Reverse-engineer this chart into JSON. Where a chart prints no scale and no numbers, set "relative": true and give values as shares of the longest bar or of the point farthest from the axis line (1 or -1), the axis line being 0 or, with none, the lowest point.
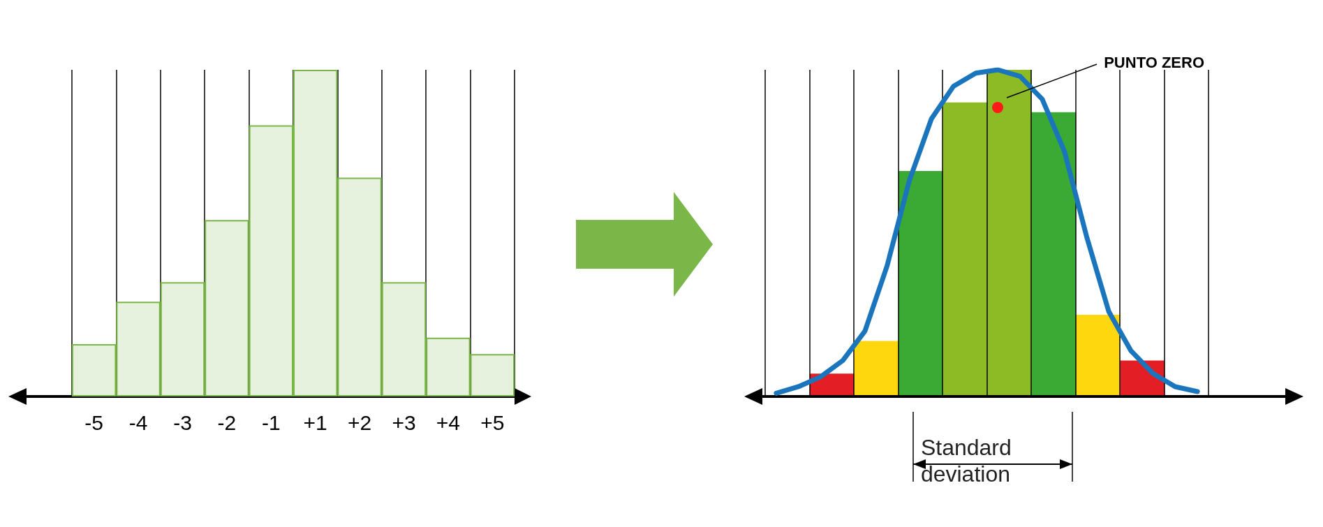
{
  "chart_data": [
    {
      "type": "bar",
      "relative": true,
      "grid": "x",
      "categories": [
        "-5",
        "-4",
        "-3",
        "-2",
        "-1",
        "+1",
        "+2",
        "+3",
        "+4",
        "+5"
      ],
      "series": [
        {
          "color": "#7ab648",
          "values": [
            0.16,
            0.29,
            0.35,
            0.54,
            0.83,
            1,
            0.67,
            0.35,
            0.18,
            0.13
          ]
        }
      ]
    },
    {
      "type": "bar",
      "relative": true,
      "categories": [
        null,
        null,
        null,
        null,
        null,
        null,
        null,
        null
      ],
      "series": [
        {
          "colors": [
            "#e31e24",
            "#ffd70f",
            "#3aaa35",
            "#8dbb25",
            "#8dbb25",
            "#3aaa35",
            "#ffd70f",
            "#e31e24"
          ],
          "values": [
            0.07,
            0.17,
            0.69,
            0.9,
            1,
            0.87,
            0.25,
            0.11
          ]
        }
      ]
    },
    {
      "type": "line",
      "relative": true,
      "grid": "x",
      "marker": "none",
      "categories": [
        null,
        null,
        null,
        null,
        null,
        null,
        null,
        null,
        null,
        null,
        null,
        null,
        null,
        null,
        null,
        null,
        null,
        null,
        null,
        null
      ],
      "series": [
        {
          "color": "#1b75bc",
          "values": [
            0.01,
            0.03,
            0.06,
            0.11,
            0.2,
            0.4,
            0.66,
            0.85,
            0.95,
            0.99,
            1,
            0.98,
            0.91,
            0.75,
            0.49,
            0.26,
            0.14,
            0.07,
            0.03,
            0.015
          ]
        }
      ],
      "annotations": [
        "PUNTO ZERO",
        "Standard deviation"
      ]
    }
  ]
}
